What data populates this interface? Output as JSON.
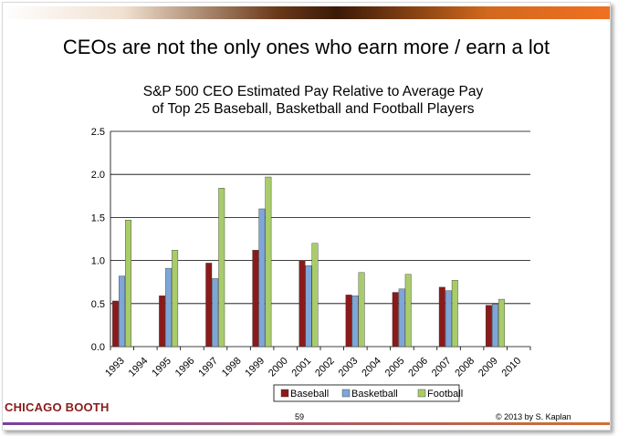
{
  "slide": {
    "title": "CEOs are not the only ones who earn more / earn a lot",
    "page_number": "59",
    "copyright": "© 2013 by S. Kaplan",
    "logo_text": "CHICAGO BOOTH"
  },
  "colors": {
    "baseball": "#8b1a1a",
    "basketball": "#7ea7d8",
    "football": "#a9cc6b",
    "gridline": "#000000"
  },
  "chart_data": {
    "type": "bar",
    "title_lines": [
      "S&P 500 CEO Estimated Pay Relative to Average Pay",
      "of Top 25 Baseball, Basketball and Football Players"
    ],
    "categories": [
      "1993",
      "1994",
      "1995",
      "1996",
      "1997",
      "1998",
      "1999",
      "2000",
      "2001",
      "2002",
      "2003",
      "2004",
      "2005",
      "2006",
      "2007",
      "2008",
      "2009",
      "2010"
    ],
    "series": [
      {
        "name": "Baseball",
        "values": [
          0.53,
          null,
          0.59,
          null,
          0.97,
          null,
          1.12,
          null,
          1.0,
          null,
          0.6,
          null,
          0.63,
          null,
          0.69,
          null,
          0.48,
          null
        ]
      },
      {
        "name": "Basketball",
        "values": [
          0.82,
          null,
          0.91,
          null,
          0.79,
          null,
          1.6,
          null,
          0.94,
          null,
          0.59,
          null,
          0.67,
          null,
          0.65,
          null,
          0.49,
          null
        ]
      },
      {
        "name": "Football",
        "values": [
          1.47,
          null,
          1.12,
          null,
          1.84,
          null,
          1.97,
          null,
          1.2,
          null,
          0.86,
          null,
          0.84,
          null,
          0.77,
          null,
          0.55,
          null
        ]
      }
    ],
    "yticks": [
      "0.0",
      "0.5",
      "1.0",
      "1.5",
      "2.0",
      "2.5"
    ],
    "ylim": [
      0,
      2.5
    ],
    "grid": "horizontal",
    "legend_position": "bottom"
  }
}
